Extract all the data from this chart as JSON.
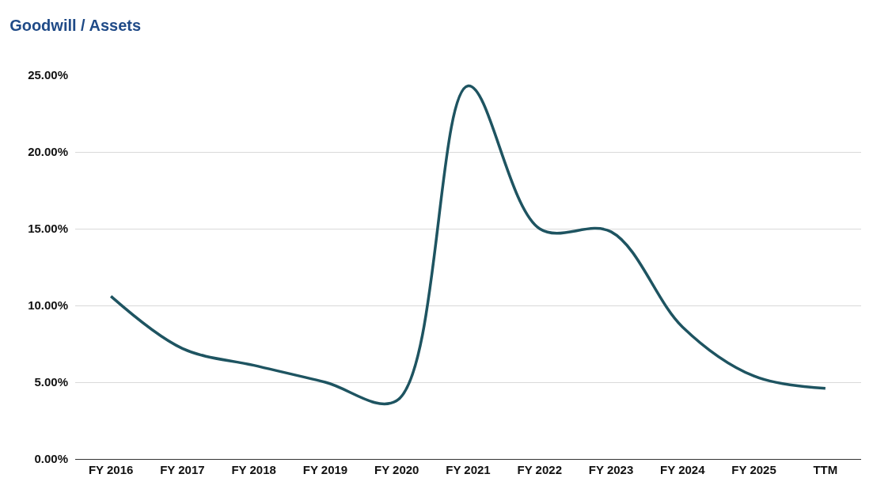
{
  "chart_data": {
    "type": "line",
    "title": "Goodwill / Assets",
    "categories": [
      "FY 2016",
      "FY 2017",
      "FY 2018",
      "FY 2019",
      "FY 2020",
      "FY 2021",
      "FY 2022",
      "FY 2023",
      "FY 2024",
      "FY 2025",
      "TTM"
    ],
    "series": [
      {
        "color": "#1e5461",
        "values": [
          10.6,
          7.2,
          6.1,
          5.0,
          3.8,
          24.3,
          15.0,
          14.8,
          8.6,
          5.4,
          4.6
        ]
      }
    ],
    "ylim": [
      0,
      25
    ],
    "yticks": [
      {
        "value": 0,
        "label": "0.00%"
      },
      {
        "value": 5,
        "label": "5.00%"
      },
      {
        "value": 10,
        "label": "10.00%"
      },
      {
        "value": 15,
        "label": "15.00%"
      },
      {
        "value": 20,
        "label": "20.00%"
      },
      {
        "value": 25,
        "label": "25.00%"
      }
    ],
    "grid": "y",
    "marker": "none",
    "line_style": "solid"
  }
}
